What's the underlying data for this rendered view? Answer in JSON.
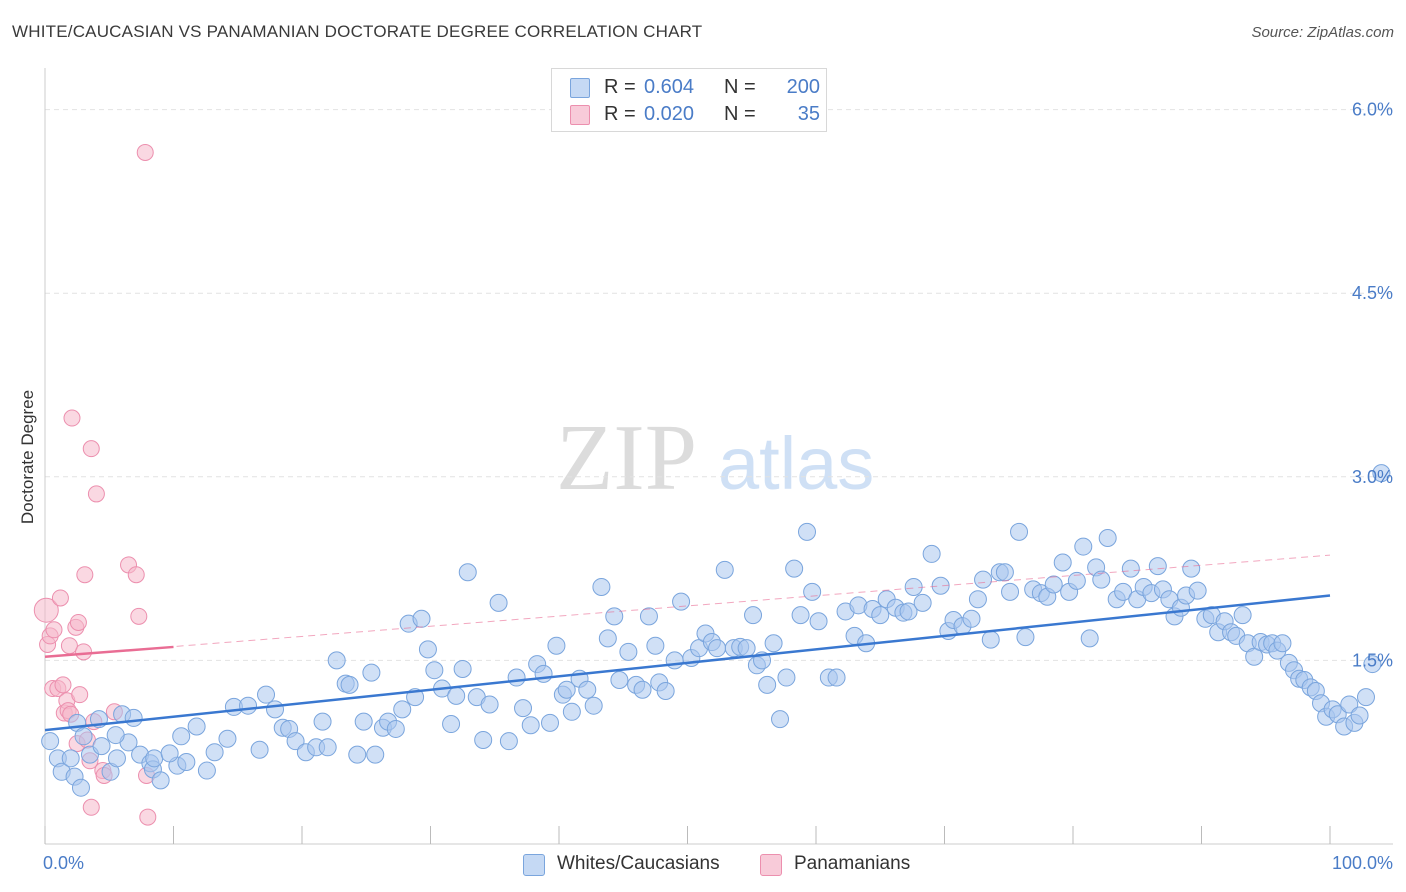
{
  "title": "WHITE/CAUCASIAN VS PANAMANIAN DOCTORATE DEGREE CORRELATION CHART",
  "source": "Source: ZipAtlas.com",
  "watermark": {
    "zip": "ZIP",
    "atlas": "atlas"
  },
  "colors": {
    "blue_fill": "#a9c6ef",
    "blue_stroke": "#7aa5dd",
    "blue_line": "#3a78d0",
    "pink_fill": "#f5b8cb",
    "pink_stroke": "#ec8fae",
    "pink_line": "#e96d94",
    "tick_label": "#4a7cc7",
    "grid": "#e2e2e2"
  },
  "legend": [
    {
      "r_label": "R =",
      "r_value": "0.604",
      "n_label": "N =",
      "n_value": "200"
    },
    {
      "r_label": "R =",
      "r_value": "0.020",
      "n_label": "N =",
      "n_value": "35"
    }
  ],
  "chart_data": {
    "type": "scatter",
    "title": "WHITE/CAUCASIAN VS PANAMANIAN DOCTORATE DEGREE CORRELATION CHART",
    "xlabel": "",
    "ylabel": "Doctorate Degree",
    "xlim": [
      0,
      100
    ],
    "ylim": [
      0,
      6.25
    ],
    "x_tick_labels": [
      "0.0%",
      "100.0%"
    ],
    "x_tick_marks": [
      0,
      10,
      20,
      30,
      40,
      50,
      60,
      70,
      80,
      90,
      100
    ],
    "y_ticks": [
      1.5,
      3.0,
      4.5,
      6.0
    ],
    "y_tick_labels": [
      "1.5%",
      "3.0%",
      "4.5%",
      "6.0%"
    ],
    "grid": true,
    "legend_position": "top-center",
    "series": [
      {
        "name": "Whites/Caucasians",
        "r": 0.604,
        "n": 200,
        "trend": {
          "x": [
            0,
            100
          ],
          "y": [
            0.93,
            2.03
          ]
        },
        "points": [
          [
            0.4,
            0.84
          ],
          [
            1.0,
            0.7
          ],
          [
            1.3,
            0.59
          ],
          [
            2.0,
            0.7
          ],
          [
            2.3,
            0.55
          ],
          [
            2.8,
            0.46
          ],
          [
            3.5,
            0.73
          ],
          [
            4.4,
            0.8
          ],
          [
            5.1,
            0.59
          ],
          [
            5.6,
            0.7
          ],
          [
            6.5,
            0.83
          ],
          [
            7.4,
            0.73
          ],
          [
            8.2,
            0.66
          ],
          [
            8.4,
            0.61
          ],
          [
            9.0,
            0.52
          ],
          [
            10.3,
            0.64
          ],
          [
            11.0,
            0.67
          ],
          [
            2.5,
            0.99
          ],
          [
            3.0,
            0.88
          ],
          [
            4.2,
            1.02
          ],
          [
            5.5,
            0.89
          ],
          [
            6.0,
            1.06
          ],
          [
            6.9,
            1.03
          ],
          [
            8.5,
            0.7
          ],
          [
            9.7,
            0.74
          ],
          [
            10.6,
            0.88
          ],
          [
            11.8,
            0.96
          ],
          [
            12.6,
            0.6
          ],
          [
            13.2,
            0.75
          ],
          [
            14.2,
            0.86
          ],
          [
            14.7,
            1.12
          ],
          [
            15.8,
            1.13
          ],
          [
            16.7,
            0.77
          ],
          [
            17.2,
            1.22
          ],
          [
            17.9,
            1.1
          ],
          [
            18.5,
            0.95
          ],
          [
            19.0,
            0.94
          ],
          [
            19.5,
            0.84
          ],
          [
            20.3,
            0.75
          ],
          [
            21.1,
            0.79
          ],
          [
            21.6,
            1.0
          ],
          [
            22.0,
            0.79
          ],
          [
            22.7,
            1.5
          ],
          [
            23.4,
            1.31
          ],
          [
            23.7,
            1.3
          ],
          [
            24.3,
            0.73
          ],
          [
            24.8,
            1.0
          ],
          [
            25.4,
            1.4
          ],
          [
            25.7,
            0.73
          ],
          [
            26.3,
            0.95
          ],
          [
            26.7,
            1.0
          ],
          [
            27.3,
            0.94
          ],
          [
            27.8,
            1.1
          ],
          [
            28.3,
            1.8
          ],
          [
            28.8,
            1.2
          ],
          [
            29.3,
            1.84
          ],
          [
            29.8,
            1.59
          ],
          [
            30.3,
            1.42
          ],
          [
            30.9,
            1.27
          ],
          [
            31.6,
            0.98
          ],
          [
            32.0,
            1.21
          ],
          [
            32.5,
            1.43
          ],
          [
            32.9,
            2.22
          ],
          [
            33.6,
            1.2
          ],
          [
            34.1,
            0.85
          ],
          [
            34.6,
            1.14
          ],
          [
            35.3,
            1.97
          ],
          [
            36.1,
            0.84
          ],
          [
            36.7,
            1.36
          ],
          [
            37.2,
            1.11
          ],
          [
            37.8,
            0.97
          ],
          [
            38.3,
            1.47
          ],
          [
            38.8,
            1.39
          ],
          [
            39.3,
            0.99
          ],
          [
            39.8,
            1.62
          ],
          [
            40.3,
            1.22
          ],
          [
            40.6,
            1.26
          ],
          [
            41.0,
            1.08
          ],
          [
            41.6,
            1.35
          ],
          [
            42.2,
            1.26
          ],
          [
            42.7,
            1.13
          ],
          [
            43.3,
            2.1
          ],
          [
            43.8,
            1.68
          ],
          [
            44.3,
            1.86
          ],
          [
            44.7,
            1.34
          ],
          [
            45.4,
            1.57
          ],
          [
            46.0,
            1.3
          ],
          [
            46.5,
            1.26
          ],
          [
            47.0,
            1.86
          ],
          [
            47.5,
            1.62
          ],
          [
            47.8,
            1.32
          ],
          [
            48.3,
            1.25
          ],
          [
            49.0,
            1.5
          ],
          [
            49.5,
            1.98
          ],
          [
            50.3,
            1.52
          ],
          [
            50.9,
            1.6
          ],
          [
            51.4,
            1.72
          ],
          [
            51.9,
            1.65
          ],
          [
            52.3,
            1.6
          ],
          [
            52.9,
            2.24
          ],
          [
            53.6,
            1.6
          ],
          [
            54.1,
            1.61
          ],
          [
            54.6,
            1.6
          ],
          [
            55.1,
            1.87
          ],
          [
            55.4,
            1.46
          ],
          [
            55.8,
            1.5
          ],
          [
            56.2,
            1.3
          ],
          [
            56.7,
            1.64
          ],
          [
            57.2,
            1.02
          ],
          [
            57.7,
            1.36
          ],
          [
            58.3,
            2.25
          ],
          [
            58.8,
            1.87
          ],
          [
            59.3,
            2.55
          ],
          [
            59.7,
            2.06
          ],
          [
            60.2,
            1.82
          ],
          [
            61.0,
            1.36
          ],
          [
            61.6,
            1.36
          ],
          [
            62.3,
            1.9
          ],
          [
            63.0,
            1.7
          ],
          [
            63.3,
            1.95
          ],
          [
            63.9,
            1.64
          ],
          [
            64.4,
            1.92
          ],
          [
            65.0,
            1.87
          ],
          [
            65.5,
            2.0
          ],
          [
            66.2,
            1.93
          ],
          [
            66.8,
            1.89
          ],
          [
            67.2,
            1.9
          ],
          [
            67.6,
            2.1
          ],
          [
            68.3,
            1.97
          ],
          [
            69.0,
            2.37
          ],
          [
            69.7,
            2.11
          ],
          [
            70.3,
            1.74
          ],
          [
            70.7,
            1.83
          ],
          [
            71.4,
            1.78
          ],
          [
            72.1,
            1.84
          ],
          [
            72.6,
            2.0
          ],
          [
            73.0,
            2.16
          ],
          [
            73.6,
            1.67
          ],
          [
            74.3,
            2.22
          ],
          [
            74.7,
            2.22
          ],
          [
            75.1,
            2.06
          ],
          [
            75.8,
            2.55
          ],
          [
            76.3,
            1.69
          ],
          [
            76.9,
            2.08
          ],
          [
            77.5,
            2.05
          ],
          [
            78.0,
            2.02
          ],
          [
            78.5,
            2.12
          ],
          [
            79.2,
            2.3
          ],
          [
            79.7,
            2.06
          ],
          [
            80.3,
            2.15
          ],
          [
            80.8,
            2.43
          ],
          [
            81.3,
            1.68
          ],
          [
            81.8,
            2.26
          ],
          [
            82.2,
            2.16
          ],
          [
            82.7,
            2.5
          ],
          [
            83.4,
            2.0
          ],
          [
            83.9,
            2.06
          ],
          [
            84.5,
            2.25
          ],
          [
            85.0,
            2.0
          ],
          [
            85.5,
            2.1
          ],
          [
            86.1,
            2.05
          ],
          [
            86.6,
            2.27
          ],
          [
            87.0,
            2.08
          ],
          [
            87.5,
            2.0
          ],
          [
            87.9,
            1.86
          ],
          [
            88.4,
            1.93
          ],
          [
            88.8,
            2.03
          ],
          [
            89.2,
            2.25
          ],
          [
            89.7,
            2.07
          ],
          [
            90.3,
            1.84
          ],
          [
            90.8,
            1.87
          ],
          [
            91.3,
            1.73
          ],
          [
            91.8,
            1.82
          ],
          [
            92.3,
            1.73
          ],
          [
            92.7,
            1.7
          ],
          [
            93.2,
            1.87
          ],
          [
            93.6,
            1.64
          ],
          [
            94.1,
            1.53
          ],
          [
            94.6,
            1.65
          ],
          [
            95.1,
            1.63
          ],
          [
            95.5,
            1.64
          ],
          [
            95.9,
            1.58
          ],
          [
            96.3,
            1.64
          ],
          [
            96.8,
            1.48
          ],
          [
            97.2,
            1.42
          ],
          [
            97.6,
            1.35
          ],
          [
            98.0,
            1.34
          ],
          [
            98.5,
            1.28
          ],
          [
            98.9,
            1.25
          ],
          [
            99.3,
            1.15
          ],
          [
            99.7,
            1.04
          ],
          [
            100.2,
            1.1
          ],
          [
            100.6,
            1.06
          ],
          [
            101.1,
            0.96
          ],
          [
            101.5,
            1.14
          ],
          [
            101.9,
            0.99
          ],
          [
            102.3,
            1.05
          ],
          [
            102.8,
            1.2
          ],
          [
            103.3,
            1.47
          ],
          [
            104.0,
            3.03
          ]
        ]
      },
      {
        "name": "Panamanians",
        "r": 0.02,
        "n": 35,
        "trend": {
          "x": [
            0,
            10
          ],
          "y": [
            1.53,
            1.61
          ]
        },
        "trend_extended": {
          "x": [
            0,
            100
          ],
          "y": [
            1.53,
            2.36
          ]
        },
        "points": [
          [
            0.1,
            1.91
          ],
          [
            0.2,
            1.63
          ],
          [
            0.4,
            1.7
          ],
          [
            0.6,
            1.27
          ],
          [
            0.7,
            1.75
          ],
          [
            1.0,
            1.27
          ],
          [
            1.2,
            2.01
          ],
          [
            1.4,
            1.3
          ],
          [
            1.5,
            1.07
          ],
          [
            1.7,
            1.17
          ],
          [
            1.8,
            1.09
          ],
          [
            1.9,
            1.62
          ],
          [
            2.0,
            1.06
          ],
          [
            2.1,
            3.48
          ],
          [
            2.4,
            1.77
          ],
          [
            2.5,
            0.82
          ],
          [
            2.6,
            1.81
          ],
          [
            2.7,
            1.22
          ],
          [
            3.0,
            1.57
          ],
          [
            3.1,
            2.2
          ],
          [
            3.3,
            0.85
          ],
          [
            3.5,
            0.68
          ],
          [
            3.6,
            0.3
          ],
          [
            3.6,
            3.23
          ],
          [
            3.8,
            1.0
          ],
          [
            4.0,
            2.86
          ],
          [
            4.5,
            0.6
          ],
          [
            4.6,
            0.56
          ],
          [
            5.4,
            1.08
          ],
          [
            6.5,
            2.28
          ],
          [
            7.1,
            2.2
          ],
          [
            7.3,
            1.86
          ],
          [
            7.9,
            0.56
          ],
          [
            7.8,
            5.65
          ],
          [
            8.0,
            0.22
          ]
        ]
      }
    ]
  }
}
